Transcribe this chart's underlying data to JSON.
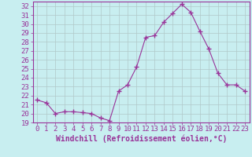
{
  "x": [
    0,
    1,
    2,
    3,
    4,
    5,
    6,
    7,
    8,
    9,
    10,
    11,
    12,
    13,
    14,
    15,
    16,
    17,
    18,
    19,
    20,
    21,
    22,
    23
  ],
  "y": [
    21.5,
    21.2,
    20.0,
    20.2,
    20.2,
    20.1,
    20.0,
    19.5,
    19.2,
    22.5,
    23.2,
    25.2,
    28.5,
    28.7,
    30.2,
    31.2,
    32.2,
    31.3,
    29.2,
    27.2,
    24.5,
    23.2,
    23.2,
    22.5
  ],
  "line_color": "#993399",
  "marker": "+",
  "marker_size": 4,
  "xlabel": "Windchill (Refroidissement éolien,°C)",
  "xlabel_fontsize": 7,
  "ylim": [
    19,
    32.5
  ],
  "xlim": [
    -0.5,
    23.5
  ],
  "yticks": [
    19,
    20,
    21,
    22,
    23,
    24,
    25,
    26,
    27,
    28,
    29,
    30,
    31,
    32
  ],
  "xticks": [
    0,
    1,
    2,
    3,
    4,
    5,
    6,
    7,
    8,
    9,
    10,
    11,
    12,
    13,
    14,
    15,
    16,
    17,
    18,
    19,
    20,
    21,
    22,
    23
  ],
  "bg_color": "#c8eef0",
  "grid_color": "#b0c8c8",
  "tick_fontsize": 6.5,
  "font_family": "monospace"
}
